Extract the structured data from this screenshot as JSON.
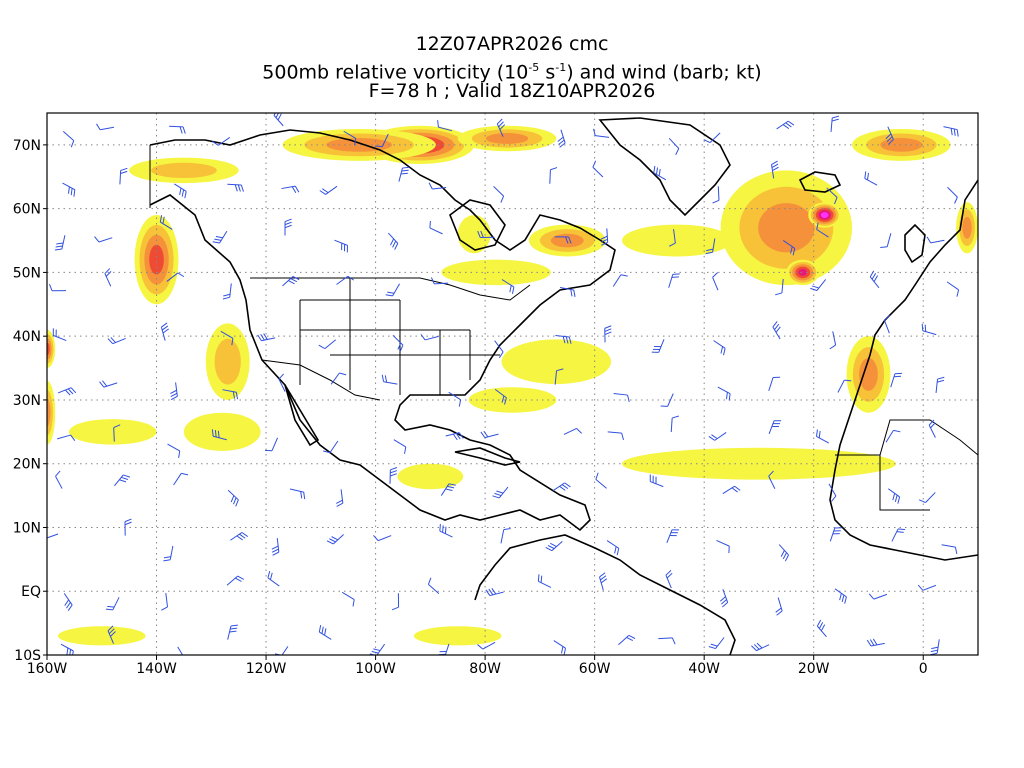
{
  "title": {
    "line1": "12Z07APR2026 cmc",
    "line2_pre": "500mb relative vorticity (10",
    "line2_exp1": "-5",
    "line2_mid": " s",
    "line2_exp2": "-1",
    "line2_post": ") and wind (barb; kt)",
    "line3": "F=78 h ; Valid 18Z10APR2026"
  },
  "axes": {
    "lon_ticks": [
      "160W",
      "140W",
      "120W",
      "100W",
      "80W",
      "60W",
      "40W",
      "20W",
      "0"
    ],
    "lat_ticks": [
      "70N",
      "60N",
      "50N",
      "40N",
      "30N",
      "20N",
      "10N",
      "EQ",
      "10S"
    ],
    "lon_range": [
      -160,
      10
    ],
    "lat_range": [
      -10,
      75
    ]
  },
  "colors": {
    "shade1": "#f5f542",
    "shade2": "#f7c238",
    "shade3": "#f5913a",
    "shade4": "#ef4a33",
    "shade5": "#e6197a",
    "shade6": "#ff33ff",
    "barb": "#3050e0",
    "coast": "#000000",
    "grid": "#888888"
  },
  "vorticity_features": [
    {
      "lon": -92,
      "lat": 70,
      "rx": 10,
      "ry": 3,
      "level": 5
    },
    {
      "lon": -103,
      "lat": 70,
      "rx": 14,
      "ry": 2.5,
      "level": 3
    },
    {
      "lon": -76,
      "lat": 71,
      "rx": 9,
      "ry": 2,
      "level": 3
    },
    {
      "lon": -140,
      "lat": 52,
      "rx": 4,
      "ry": 7,
      "level": 4
    },
    {
      "lon": -135,
      "lat": 66,
      "rx": 10,
      "ry": 2,
      "level": 2
    },
    {
      "lon": -127,
      "lat": 36,
      "rx": 4,
      "ry": 6,
      "level": 2
    },
    {
      "lon": -128,
      "lat": 25,
      "rx": 7,
      "ry": 3,
      "level": 1
    },
    {
      "lon": -148,
      "lat": 25,
      "rx": 8,
      "ry": 2,
      "level": 1
    },
    {
      "lon": -160,
      "lat": 38,
      "rx": 1.5,
      "ry": 3,
      "level": 4
    },
    {
      "lon": -160,
      "lat": 28,
      "rx": 1.5,
      "ry": 5,
      "level": 3
    },
    {
      "lon": -78,
      "lat": 50,
      "rx": 10,
      "ry": 2,
      "level": 1
    },
    {
      "lon": -65,
      "lat": 55,
      "rx": 7,
      "ry": 2.5,
      "level": 3
    },
    {
      "lon": -82,
      "lat": 56,
      "rx": 3,
      "ry": 3,
      "level": 1
    },
    {
      "lon": -67,
      "lat": 36,
      "rx": 10,
      "ry": 3.5,
      "level": 1
    },
    {
      "lon": -75,
      "lat": 30,
      "rx": 8,
      "ry": 2,
      "level": 1
    },
    {
      "lon": -25,
      "lat": 57,
      "rx": 12,
      "ry": 9,
      "level": 3
    },
    {
      "lon": -18,
      "lat": 59,
      "rx": 3,
      "ry": 2,
      "level": 6
    },
    {
      "lon": -22,
      "lat": 50,
      "rx": 3,
      "ry": 2,
      "level": 5
    },
    {
      "lon": -45,
      "lat": 55,
      "rx": 10,
      "ry": 2.5,
      "level": 1
    },
    {
      "lon": -4,
      "lat": 70,
      "rx": 9,
      "ry": 2.5,
      "level": 3
    },
    {
      "lon": -10,
      "lat": 34,
      "rx": 4,
      "ry": 6,
      "level": 3
    },
    {
      "lon": -30,
      "lat": 20,
      "rx": 25,
      "ry": 2.5,
      "level": 1
    },
    {
      "lon": -90,
      "lat": 18,
      "rx": 6,
      "ry": 2,
      "level": 1
    },
    {
      "lon": -150,
      "lat": -7,
      "rx": 8,
      "ry": 1.5,
      "level": 1
    },
    {
      "lon": -85,
      "lat": -7,
      "rx": 8,
      "ry": 1.5,
      "level": 1
    },
    {
      "lon": 8,
      "lat": 57,
      "rx": 2,
      "ry": 4,
      "level": 3
    }
  ]
}
